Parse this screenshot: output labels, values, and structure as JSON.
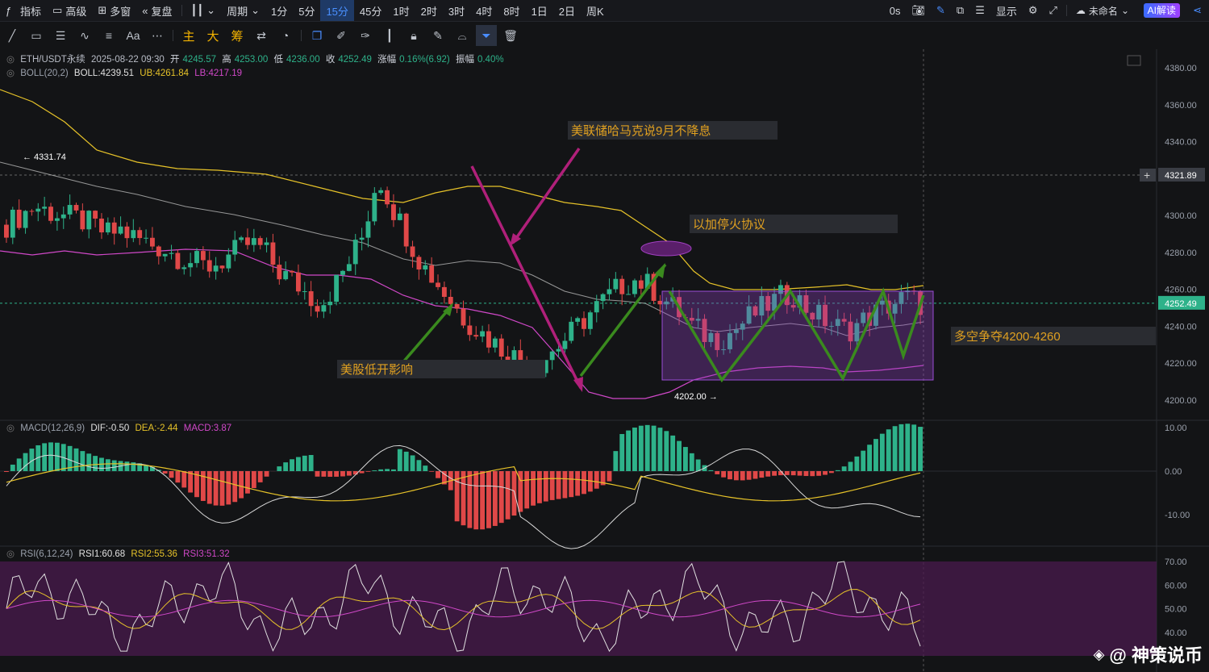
{
  "topbar": {
    "left": [
      "指标",
      "高级",
      "多窗",
      "复盘"
    ],
    "period_label": "周期",
    "intervals": [
      "1分",
      "5分",
      "15分",
      "45分",
      "1时",
      "2时",
      "3时",
      "4时",
      "8时",
      "1日",
      "2日",
      "周K"
    ],
    "selected_interval": "15分",
    "right": {
      "seconds": "0s",
      "display": "显示",
      "layout_name": "未命名",
      "ai_button": "AI解读"
    }
  },
  "toolbar": {
    "indicator_buttons": [
      "主",
      "大",
      "筹"
    ]
  },
  "legend": {
    "symbol": "ETH/USDT永续",
    "datetime": "2025-08-22 09:30",
    "open_label": "开",
    "open": "4245.57",
    "high_label": "高",
    "high": "4253.00",
    "low_label": "低",
    "low": "4236.00",
    "close_label": "收",
    "close": "4252.49",
    "change_label": "涨幅",
    "change": "0.16%(6.92)",
    "amp_label": "振幅",
    "amp": "0.40%",
    "boll_name": "BOLL(20,2)",
    "boll": "BOLL:4239.51",
    "ub": "UB:4261.84",
    "lb": "LB:4217.19",
    "macd_name": "MACD(12,26,9)",
    "dif": "DIF:-0.50",
    "dea": "DEA:-2.44",
    "macd": "MACD:3.87",
    "rsi_name": "RSI(6,12,24)",
    "rsi1": "RSI1:60.68",
    "rsi2": "RSI2:55.36",
    "rsi3": "RSI3:51.32"
  },
  "price_axis": {
    "ticks": [
      "4380.00",
      "4360.00",
      "4340.00",
      "4321.89",
      "4300.00",
      "4280.00",
      "4260.00",
      "4252.49",
      "4240.00",
      "4220.00",
      "4200.00"
    ],
    "crosshair_price": "4321.89",
    "last_price": "4252.49"
  },
  "macd_axis": {
    "ticks": [
      "10.00",
      "0.00",
      "-10.00"
    ]
  },
  "rsi_axis": {
    "ticks": [
      "70.00",
      "60.00",
      "50.00",
      "40.00"
    ]
  },
  "markers": {
    "high": "4331.74",
    "low": "4202.00"
  },
  "annotations": {
    "fed": "美联储哈马克说9月不降息",
    "ceasefire": "以加停火协议",
    "stocks": "美股低开影响",
    "range": "多空争夺4200-4260"
  },
  "colors": {
    "up": "#2eb28a",
    "down": "#e04848",
    "ub": "#e6c229",
    "mid": "#cfcfcf",
    "lb": "#d048c8",
    "purple_box": "#8e3fc0",
    "green_arrow": "#3a8a1e",
    "magenta_arrow": "#b0207a"
  },
  "watermark": "@ 神策说币"
}
